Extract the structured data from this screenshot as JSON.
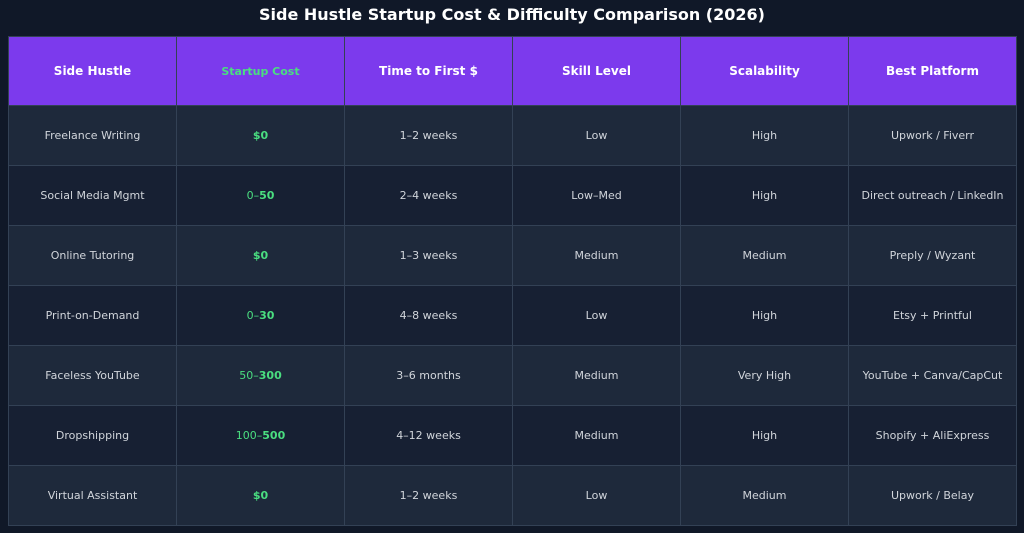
{
  "chart_data": {
    "type": "table",
    "title": "Side Hustle Startup Cost & Difficulty Comparison (2026)",
    "columns": [
      "Side Hustle",
      "Startup Cost",
      "Time to First $",
      "Skill Level",
      "Scalability",
      "Best Platform"
    ],
    "rows": [
      {
        "hustle": "Freelance Writing",
        "cost_low": "",
        "cost_high": "$0",
        "time": "1–2 weeks",
        "skill": "Low",
        "scalability": "High",
        "platform": "Upwork / Fiverr"
      },
      {
        "hustle": "Social Media Mgmt",
        "cost_low": "0–",
        "cost_high": "50",
        "time": "2–4 weeks",
        "skill": "Low–Med",
        "scalability": "High",
        "platform": "Direct outreach / LinkedIn"
      },
      {
        "hustle": "Online Tutoring",
        "cost_low": "",
        "cost_high": "$0",
        "time": "1–3 weeks",
        "skill": "Medium",
        "scalability": "Medium",
        "platform": "Preply / Wyzant"
      },
      {
        "hustle": "Print-on-Demand",
        "cost_low": "0–",
        "cost_high": "30",
        "time": "4–8 weeks",
        "skill": "Low",
        "scalability": "High",
        "platform": "Etsy + Printful"
      },
      {
        "hustle": "Faceless YouTube",
        "cost_low": "50–",
        "cost_high": "300",
        "time": "3–6 months",
        "skill": "Medium",
        "scalability": "Very High",
        "platform": "YouTube + Canva/CapCut"
      },
      {
        "hustle": "Dropshipping",
        "cost_low": "100–",
        "cost_high": "500",
        "time": "4–12 weeks",
        "skill": "Medium",
        "scalability": "High",
        "platform": "Shopify + AliExpress"
      },
      {
        "hustle": "Virtual Assistant",
        "cost_low": "",
        "cost_high": "$0",
        "time": "1–2 weeks",
        "skill": "Low",
        "scalability": "Medium",
        "platform": "Upwork / Belay"
      }
    ]
  },
  "colors": {
    "background": "#101828",
    "header": "#7c3aed",
    "row_odd": "#1e293b",
    "row_even": "#172033",
    "cost_green": "#4ade80",
    "border": "#334155"
  }
}
